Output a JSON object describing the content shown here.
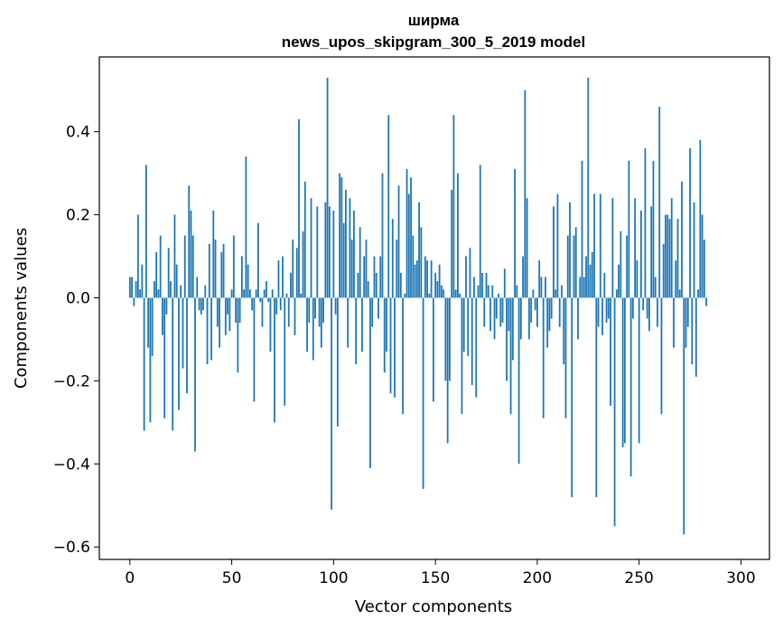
{
  "chart_data": {
    "type": "bar",
    "title": "ширма",
    "subtitle": "news_upos_skipgram_300_5_2019 model",
    "xlabel": "Vector components",
    "ylabel": "Components values",
    "xlim": [
      -15,
      314
    ],
    "ylim": [
      -0.63,
      0.58
    ],
    "xticks": [
      0,
      50,
      100,
      150,
      200,
      250,
      300
    ],
    "yticks": [
      -0.6,
      -0.4,
      -0.2,
      0.0,
      0.2,
      0.4
    ],
    "ytick_labels": [
      "−0.6",
      "−0.4",
      "−0.2",
      "0.0",
      "0.2",
      "0.4"
    ],
    "bar_color": "#1f77b4",
    "values": [
      0.05,
      0.05,
      -0.02,
      0.04,
      0.2,
      0.02,
      0.08,
      -0.32,
      0.32,
      -0.12,
      -0.3,
      -0.14,
      0.04,
      0.11,
      0.02,
      0.15,
      -0.09,
      -0.29,
      -0.04,
      0.12,
      0.04,
      -0.32,
      0.2,
      0.08,
      -0.27,
      0.03,
      -0.17,
      0.15,
      -0.23,
      0.27,
      0.21,
      0.15,
      -0.37,
      0.05,
      -0.03,
      -0.04,
      -0.03,
      0.03,
      -0.16,
      0.13,
      -0.15,
      0.21,
      0.14,
      -0.07,
      -0.12,
      0.11,
      0.13,
      -0.09,
      -0.04,
      -0.08,
      0.02,
      0.15,
      -0.06,
      -0.18,
      -0.06,
      0.1,
      0.02,
      0.34,
      0.08,
      0.02,
      -0.03,
      -0.25,
      0.02,
      0.18,
      -0.01,
      -0.07,
      0.02,
      0.04,
      -0.01,
      -0.13,
      0.02,
      -0.3,
      -0.04,
      0.09,
      -0.03,
      0.1,
      -0.26,
      0.01,
      -0.07,
      0.06,
      0.14,
      -0.09,
      0.12,
      0.43,
      0.01,
      0.16,
      0.28,
      -0.13,
      -0.06,
      0.24,
      -0.15,
      -0.05,
      0.22,
      -0.07,
      -0.12,
      -0.06,
      0.23,
      0.53,
      0.22,
      -0.51,
      0.21,
      -0.04,
      -0.31,
      0.3,
      0.29,
      0.18,
      0.26,
      -0.12,
      0.24,
      0.14,
      0.21,
      -0.16,
      0.06,
      0.17,
      -0.13,
      0.1,
      0.14,
      0.04,
      -0.41,
      -0.07,
      0.1,
      0.06,
      -0.05,
      0.1,
      0.3,
      -0.18,
      -0.13,
      0.44,
      -0.23,
      0.19,
      -0.24,
      0.14,
      0.27,
      0.06,
      -0.28,
      0.01,
      0.31,
      0.25,
      0.29,
      0.15,
      0.08,
      0.09,
      0.23,
      0.17,
      -0.46,
      0.1,
      0.09,
      0.01,
      0.09,
      -0.25,
      0.06,
      0.04,
      0.08,
      0.03,
      0.02,
      -0.2,
      -0.35,
      -0.2,
      0.26,
      0.44,
      0.02,
      0.3,
      0.01,
      -0.28,
      -0.13,
      0.1,
      -0.14,
      0.12,
      -0.21,
      0.05,
      -0.24,
      0.03,
      0.32,
      0.06,
      -0.07,
      0.06,
      0.03,
      -0.08,
      0.03,
      -0.1,
      -0.05,
      0.01,
      -0.07,
      -0.06,
      0.07,
      -0.2,
      -0.08,
      -0.28,
      -0.15,
      0.31,
      0.03,
      -0.4,
      -0.1,
      0.1,
      0.5,
      0.24,
      -0.1,
      -0.06,
      0.02,
      -0.03,
      -0.07,
      0.09,
      0.05,
      -0.29,
      0.05,
      -0.12,
      -0.08,
      -0.05,
      0.22,
      0.02,
      0.25,
      -0.07,
      0.03,
      -0.16,
      -0.29,
      0.15,
      0.23,
      -0.48,
      0.15,
      0.17,
      -0.1,
      0.05,
      0.33,
      0.05,
      0.1,
      0.53,
      0.08,
      0.11,
      0.25,
      -0.48,
      -0.07,
      0.25,
      -0.09,
      0.06,
      -0.06,
      -0.05,
      -0.26,
      0.24,
      -0.55,
      0.02,
      0.08,
      0.16,
      -0.36,
      -0.35,
      0.15,
      0.33,
      -0.43,
      -0.05,
      0.24,
      0.09,
      -0.35,
      0.21,
      -0.03,
      0.36,
      -0.05,
      -0.08,
      0.22,
      0.33,
      0.05,
      -0.07,
      0.46,
      -0.28,
      0.13,
      0.2,
      0.2,
      0.19,
      0.24,
      -0.12,
      0.09,
      0.19,
      0.02,
      0.28,
      -0.57,
      -0.12,
      -0.07,
      0.36,
      -0.16,
      0.23,
      -0.19,
      0.02,
      0.38,
      0.2,
      0.14,
      -0.02
    ]
  }
}
